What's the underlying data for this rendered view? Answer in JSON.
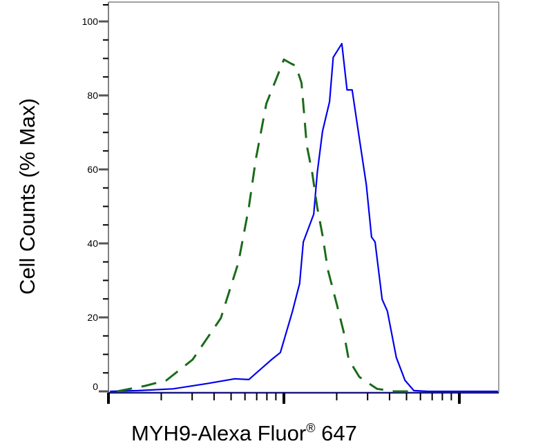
{
  "chart_data": {
    "type": "line",
    "title": "",
    "xlabel": "MYH9-Alexa Fluor",
    "xlabel_superscript": "®",
    "xlabel_suffix": " 647",
    "ylabel": "Cell Counts (% Max)",
    "xscale": "log",
    "xlim": [
      1,
      166
    ],
    "ylim": [
      0,
      100
    ],
    "yticks": [
      0,
      20,
      40,
      60,
      80,
      100
    ],
    "ytick_labels": [
      "0",
      "20",
      "40",
      "60",
      "80",
      "100"
    ],
    "xtick_labels": [],
    "grid": false,
    "legend": "none",
    "series": [
      {
        "style": "solid",
        "color": "#0000ee",
        "x": [
          1.02,
          1.48,
          2.34,
          3.63,
          5.25,
          6.31,
          8.51,
          9.55,
          11.2,
          12.3,
          12.9,
          14.8,
          15.5,
          16.6,
          18.2,
          19.1,
          21.4,
          22.9,
          24.5,
          26.9,
          29.5,
          31.6,
          33.1,
          36.3,
          38.9,
          43.7,
          49.0,
          55.0,
          66.1,
          166
        ],
        "y": [
          0,
          0.2,
          0.7,
          2.1,
          3.4,
          3.2,
          8.6,
          10.5,
          21.7,
          29.2,
          40.4,
          47.9,
          59.1,
          70.3,
          78.3,
          90.3,
          94.0,
          81.5,
          81.5,
          68.4,
          55.9,
          41.7,
          40.4,
          24.9,
          21.7,
          9.2,
          3.0,
          0.2,
          0,
          0
        ]
      },
      {
        "style": "dashed",
        "color": "#1a6b1a",
        "x": [
          1.12,
          1.62,
          2.14,
          3.02,
          4.37,
          5.5,
          6.31,
          6.92,
          7.94,
          8.91,
          10.0,
          11.0,
          11.7,
          12.6,
          13.5,
          14.5,
          15.5,
          16.6,
          17.8,
          20.0,
          21.9,
          23.4,
          26.9,
          33.9,
          42.7,
          55.0
        ],
        "y": [
          0,
          1.5,
          3.0,
          8.6,
          19.8,
          34.8,
          49.7,
          62.8,
          77.8,
          83.7,
          89.7,
          88.6,
          88.0,
          83.4,
          66.5,
          59.1,
          49.7,
          42.2,
          32.9,
          23.6,
          16.1,
          8.6,
          3.9,
          0.7,
          0,
          0
        ]
      }
    ]
  }
}
